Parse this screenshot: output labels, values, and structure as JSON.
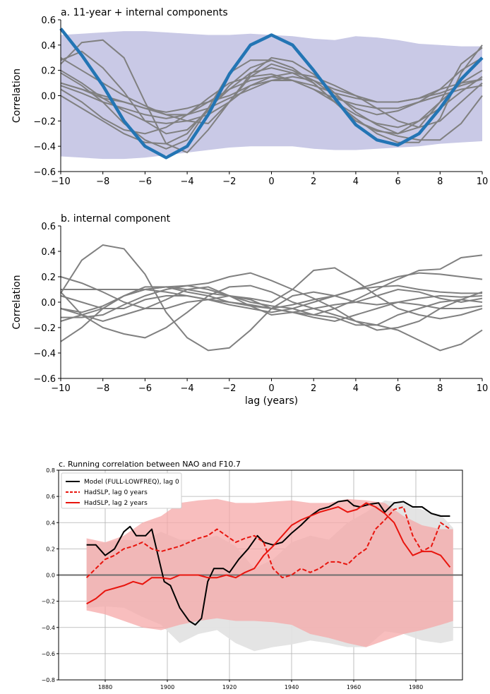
{
  "chart_data": [
    {
      "type": "line",
      "title": "a. 11-year + internal components",
      "xlabel": "",
      "ylabel": "Correlation",
      "xlim": [
        -10,
        10
      ],
      "ylim": [
        -0.6,
        0.6
      ],
      "xticks": [
        "−10",
        "−8",
        "−6",
        "−4",
        "−2",
        "0",
        "2",
        "4",
        "6",
        "8",
        "10"
      ],
      "yticks": [
        "−0.6",
        "−0.4",
        "−0.2",
        "0.0",
        "0.2",
        "0.4",
        "0.6"
      ],
      "grid": false,
      "x": [
        -10,
        -9,
        -8,
        -7,
        -6,
        -5,
        -4,
        -3,
        -2,
        -1,
        0,
        1,
        2,
        3,
        4,
        5,
        6,
        7,
        8,
        9,
        10
      ],
      "band": {
        "color": "#c9c9e6",
        "upper": [
          0.48,
          0.49,
          0.5,
          0.51,
          0.51,
          0.5,
          0.49,
          0.48,
          0.48,
          0.49,
          0.48,
          0.47,
          0.45,
          0.44,
          0.47,
          0.46,
          0.44,
          0.41,
          0.4,
          0.39,
          0.39
        ],
        "lower": [
          -0.48,
          -0.49,
          -0.5,
          -0.5,
          -0.49,
          -0.47,
          -0.45,
          -0.43,
          -0.41,
          -0.4,
          -0.4,
          -0.4,
          -0.42,
          -0.43,
          -0.43,
          -0.42,
          -0.41,
          -0.4,
          -0.38,
          -0.37,
          -0.36
        ]
      },
      "highlight": {
        "color": "#2375b4",
        "values": [
          0.53,
          0.32,
          0.08,
          -0.2,
          -0.4,
          -0.49,
          -0.4,
          -0.15,
          0.17,
          0.4,
          0.48,
          0.4,
          0.2,
          -0.02,
          -0.23,
          -0.35,
          -0.39,
          -0.3,
          -0.1,
          0.13,
          0.3
        ]
      },
      "series_color": "#808080",
      "series": [
        {
          "values": [
            0.25,
            0.42,
            0.44,
            0.3,
            -0.05,
            -0.38,
            -0.45,
            -0.27,
            -0.05,
            0.17,
            0.3,
            0.27,
            0.17,
            0.02,
            -0.13,
            -0.23,
            -0.3,
            -0.2,
            -0.05,
            0.25,
            0.38
          ]
        },
        {
          "values": [
            0.28,
            0.35,
            0.22,
            0.03,
            -0.2,
            -0.3,
            -0.27,
            -0.12,
            0.08,
            0.22,
            0.28,
            0.22,
            0.1,
            -0.05,
            -0.2,
            -0.27,
            -0.32,
            -0.35,
            -0.35,
            -0.22,
            0.0
          ]
        },
        {
          "values": [
            0.18,
            0.08,
            -0.05,
            -0.22,
            -0.35,
            -0.42,
            -0.35,
            -0.1,
            0.18,
            0.28,
            0.28,
            0.22,
            0.1,
            -0.05,
            -0.18,
            -0.3,
            -0.37,
            -0.37,
            -0.18,
            0.18,
            0.4
          ]
        },
        {
          "values": [
            0.1,
            0.05,
            -0.02,
            -0.05,
            -0.1,
            -0.13,
            -0.1,
            -0.05,
            0.0,
            0.08,
            0.12,
            0.12,
            0.08,
            0.02,
            -0.02,
            -0.05,
            -0.05,
            -0.02,
            0.05,
            0.1,
            0.13
          ]
        },
        {
          "values": [
            0.05,
            -0.05,
            -0.18,
            -0.27,
            -0.3,
            -0.25,
            -0.15,
            -0.02,
            0.1,
            0.15,
            0.17,
            0.12,
            0.05,
            -0.05,
            -0.15,
            -0.22,
            -0.25,
            -0.2,
            -0.1,
            0.03,
            0.15
          ]
        },
        {
          "values": [
            0.0,
            -0.1,
            -0.2,
            -0.3,
            -0.37,
            -0.38,
            -0.3,
            -0.1,
            0.05,
            0.18,
            0.22,
            0.18,
            0.1,
            -0.05,
            -0.2,
            -0.28,
            -0.3,
            -0.25,
            -0.05,
            0.1,
            0.2
          ]
        },
        {
          "values": [
            0.3,
            0.2,
            0.1,
            0.0,
            -0.08,
            -0.15,
            -0.2,
            -0.22,
            -0.05,
            0.15,
            0.25,
            0.2,
            0.12,
            0.0,
            -0.1,
            -0.15,
            -0.12,
            -0.05,
            0.05,
            0.2,
            0.3
          ]
        },
        {
          "values": [
            0.1,
            0.05,
            0.0,
            -0.05,
            -0.1,
            -0.15,
            -0.15,
            -0.1,
            -0.02,
            0.05,
            0.12,
            0.15,
            0.12,
            0.05,
            0.0,
            -0.05,
            -0.05,
            -0.02,
            0.02,
            0.08,
            0.13
          ]
        },
        {
          "values": [
            0.2,
            0.1,
            -0.02,
            -0.12,
            -0.2,
            -0.22,
            -0.2,
            -0.15,
            -0.05,
            0.08,
            0.15,
            0.18,
            0.15,
            0.08,
            0.0,
            -0.1,
            -0.2,
            -0.25,
            -0.2,
            -0.05,
            0.1
          ]
        },
        {
          "values": [
            0.08,
            0.02,
            -0.05,
            -0.1,
            -0.15,
            -0.18,
            -0.15,
            -0.05,
            0.05,
            0.12,
            0.15,
            0.12,
            0.05,
            -0.02,
            -0.07,
            -0.1,
            -0.1,
            -0.05,
            0.0,
            0.05,
            0.08
          ]
        }
      ]
    },
    {
      "type": "line",
      "title": "b. internal component",
      "xlabel": "lag (years)",
      "ylabel": "Correlation",
      "xlim": [
        -10,
        10
      ],
      "ylim": [
        -0.6,
        0.6
      ],
      "xticks": [
        "−10",
        "−8",
        "−6",
        "−4",
        "−2",
        "0",
        "2",
        "4",
        "6",
        "8",
        "10"
      ],
      "yticks": [
        "−0.6",
        "−0.4",
        "−0.2",
        "0.0",
        "0.2",
        "0.4",
        "0.6"
      ],
      "grid": false,
      "x": [
        -10,
        -9,
        -8,
        -7,
        -6,
        -5,
        -4,
        -3,
        -2,
        -1,
        0,
        1,
        2,
        3,
        4,
        5,
        6,
        7,
        8,
        9,
        10
      ],
      "series_color": "#808080",
      "series": [
        {
          "values": [
            0.07,
            0.33,
            0.45,
            0.42,
            0.22,
            -0.08,
            -0.28,
            -0.38,
            -0.36,
            -0.22,
            -0.05,
            0.05,
            0.08,
            0.05,
            0.0,
            -0.02,
            0.0,
            0.03,
            0.05,
            0.04,
            0.05
          ]
        },
        {
          "values": [
            0.08,
            -0.1,
            -0.2,
            -0.25,
            -0.28,
            -0.2,
            -0.08,
            0.05,
            0.12,
            0.13,
            0.08,
            0.0,
            -0.05,
            -0.1,
            -0.15,
            -0.18,
            -0.22,
            -0.3,
            -0.38,
            -0.33,
            -0.22
          ]
        },
        {
          "values": [
            -0.31,
            -0.2,
            -0.05,
            0.05,
            0.1,
            0.12,
            0.1,
            0.07,
            0.05,
            0.02,
            -0.05,
            -0.08,
            -0.1,
            -0.05,
            0.02,
            0.1,
            0.18,
            0.25,
            0.26,
            0.35,
            0.37
          ]
        },
        {
          "values": [
            0.2,
            0.15,
            0.08,
            0.0,
            -0.05,
            -0.05,
            0.0,
            0.02,
            0.05,
            0.03,
            0.0,
            0.1,
            0.25,
            0.27,
            0.17,
            0.05,
            -0.05,
            -0.1,
            -0.13,
            -0.1,
            -0.05
          ]
        },
        {
          "values": [
            -0.05,
            -0.08,
            -0.03,
            0.05,
            0.1,
            0.12,
            0.13,
            0.15,
            0.2,
            0.23,
            0.17,
            0.1,
            0.03,
            -0.05,
            -0.15,
            -0.22,
            -0.2,
            -0.15,
            -0.05,
            0.02,
            0.08
          ]
        },
        {
          "values": [
            -0.15,
            -0.1,
            -0.05,
            0.05,
            0.12,
            0.12,
            0.08,
            0.05,
            0.0,
            -0.02,
            -0.05,
            -0.02,
            0.02,
            0.05,
            0.1,
            0.15,
            0.2,
            0.23,
            0.22,
            0.2,
            0.18
          ]
        },
        {
          "values": [
            0.1,
            0.1,
            0.1,
            0.1,
            0.1,
            0.08,
            0.05,
            0.02,
            -0.02,
            -0.05,
            -0.08,
            -0.05,
            0.0,
            0.05,
            0.1,
            0.12,
            0.13,
            0.1,
            0.08,
            0.07,
            0.07
          ]
        },
        {
          "values": [
            -0.05,
            -0.1,
            -0.15,
            -0.1,
            -0.05,
            0.02,
            0.1,
            0.12,
            0.05,
            -0.03,
            -0.1,
            -0.08,
            -0.05,
            -0.02,
            0.0,
            0.05,
            0.1,
            0.08,
            0.03,
            0.0,
            0.03
          ]
        },
        {
          "values": [
            0.05,
            0.0,
            -0.05,
            -0.05,
            0.02,
            0.05,
            0.05,
            0.02,
            0.0,
            -0.03,
            -0.05,
            -0.08,
            -0.12,
            -0.15,
            -0.1,
            -0.05,
            0.0,
            -0.02,
            -0.05,
            -0.05,
            -0.03
          ]
        },
        {
          "values": [
            -0.12,
            -0.12,
            -0.1,
            -0.02,
            0.05,
            0.1,
            0.13,
            0.1,
            0.05,
            0.0,
            -0.03,
            -0.05,
            -0.1,
            -0.12,
            -0.18,
            -0.18,
            -0.1,
            -0.05,
            0.0,
            0.02,
            0.0
          ]
        }
      ]
    },
    {
      "type": "line",
      "title": "c. Running correlation between NAO and F10.7",
      "xlabel": "",
      "ylabel": "",
      "xlim": [
        1865,
        1995
      ],
      "ylim": [
        -0.8,
        0.8
      ],
      "xticks": [
        "1880",
        "1900",
        "1920",
        "1940",
        "1960",
        "1980"
      ],
      "yticks": [
        "−0.8",
        "−0.6",
        "−0.4",
        "−0.2",
        "0.0",
        "0.2",
        "0.4",
        "0.6",
        "0.8"
      ],
      "grid": true,
      "legend": "top-left",
      "zero_line": true,
      "grey_band": {
        "color": "#e3e3e3",
        "x": [
          1874,
          1880,
          1886,
          1892,
          1898,
          1904,
          1910,
          1916,
          1922,
          1928,
          1934,
          1940,
          1946,
          1952,
          1958,
          1964,
          1970,
          1976,
          1982,
          1988,
          1992
        ],
        "upper": [
          0.22,
          0.25,
          0.27,
          0.26,
          0.33,
          0.27,
          0.27,
          0.3,
          0.22,
          0.05,
          0.12,
          0.25,
          0.3,
          0.27,
          0.4,
          0.48,
          0.57,
          0.55,
          0.5,
          0.46,
          0.36
        ],
        "lower": [
          -0.25,
          -0.24,
          -0.25,
          -0.32,
          -0.38,
          -0.52,
          -0.45,
          -0.42,
          -0.52,
          -0.58,
          -0.55,
          -0.53,
          -0.5,
          -0.52,
          -0.55,
          -0.55,
          -0.43,
          -0.45,
          -0.5,
          -0.52,
          -0.5
        ]
      },
      "red_band": {
        "color": "#f5a8a8",
        "x": [
          1874,
          1880,
          1886,
          1892,
          1898,
          1904,
          1910,
          1916,
          1922,
          1928,
          1934,
          1940,
          1946,
          1952,
          1958,
          1964,
          1970,
          1976,
          1982,
          1988,
          1992
        ],
        "upper": [
          0.28,
          0.25,
          0.3,
          0.4,
          0.45,
          0.55,
          0.57,
          0.58,
          0.55,
          0.55,
          0.56,
          0.57,
          0.55,
          0.55,
          0.58,
          0.57,
          0.55,
          0.45,
          0.38,
          0.35,
          0.35
        ],
        "lower": [
          -0.27,
          -0.3,
          -0.35,
          -0.4,
          -0.42,
          -0.38,
          -0.35,
          -0.33,
          -0.35,
          -0.35,
          -0.36,
          -0.38,
          -0.45,
          -0.48,
          -0.52,
          -0.55,
          -0.5,
          -0.45,
          -0.42,
          -0.38,
          -0.35
        ]
      },
      "series": [
        {
          "name": "Model (FULL-LOWFREQ), lag 0",
          "color": "#000000",
          "dash": "",
          "x": [
            1874,
            1877,
            1880,
            1883,
            1886,
            1888,
            1890,
            1893,
            1895,
            1897,
            1899,
            1901,
            1904,
            1907,
            1909,
            1911,
            1913,
            1915,
            1918,
            1920,
            1923,
            1926,
            1929,
            1931,
            1934,
            1937,
            1940,
            1943,
            1946,
            1949,
            1952,
            1955,
            1958,
            1960,
            1962,
            1965,
            1968,
            1970,
            1973,
            1976,
            1979,
            1982,
            1985,
            1988,
            1991
          ],
          "y": [
            0.23,
            0.23,
            0.15,
            0.2,
            0.33,
            0.37,
            0.3,
            0.3,
            0.35,
            0.15,
            -0.05,
            -0.08,
            -0.25,
            -0.35,
            -0.38,
            -0.33,
            -0.05,
            0.05,
            0.05,
            0.02,
            0.12,
            0.2,
            0.3,
            0.25,
            0.23,
            0.25,
            0.32,
            0.38,
            0.45,
            0.5,
            0.52,
            0.56,
            0.57,
            0.53,
            0.52,
            0.54,
            0.55,
            0.48,
            0.55,
            0.56,
            0.52,
            0.52,
            0.47,
            0.45,
            0.45
          ]
        },
        {
          "name": "HadSLP, lag 0 years",
          "color": "#e8150e",
          "dash": "6,3",
          "x": [
            1874,
            1877,
            1880,
            1883,
            1886,
            1889,
            1892,
            1895,
            1898,
            1901,
            1904,
            1907,
            1910,
            1913,
            1916,
            1919,
            1922,
            1925,
            1928,
            1931,
            1934,
            1937,
            1940,
            1943,
            1946,
            1949,
            1952,
            1955,
            1958,
            1961,
            1964,
            1967,
            1970,
            1973,
            1976,
            1979,
            1982,
            1985,
            1988,
            1991
          ],
          "y": [
            -0.02,
            0.05,
            0.12,
            0.15,
            0.2,
            0.22,
            0.25,
            0.2,
            0.18,
            0.2,
            0.22,
            0.25,
            0.28,
            0.3,
            0.35,
            0.3,
            0.25,
            0.28,
            0.3,
            0.25,
            0.05,
            -0.02,
            0.0,
            0.05,
            0.02,
            0.05,
            0.1,
            0.1,
            0.08,
            0.15,
            0.2,
            0.35,
            0.42,
            0.5,
            0.52,
            0.3,
            0.18,
            0.22,
            0.4,
            0.35
          ]
        },
        {
          "name": "HadSLP, lag 2 years",
          "color": "#e8150e",
          "dash": "",
          "x": [
            1874,
            1877,
            1880,
            1883,
            1886,
            1889,
            1892,
            1895,
            1898,
            1901,
            1904,
            1907,
            1910,
            1913,
            1916,
            1919,
            1922,
            1925,
            1928,
            1931,
            1934,
            1937,
            1940,
            1943,
            1946,
            1949,
            1952,
            1955,
            1958,
            1961,
            1964,
            1967,
            1970,
            1973,
            1976,
            1979,
            1982,
            1985,
            1988,
            1991
          ],
          "y": [
            -0.22,
            -0.18,
            -0.12,
            -0.1,
            -0.08,
            -0.05,
            -0.07,
            -0.02,
            -0.02,
            -0.03,
            0.0,
            0.0,
            0.0,
            -0.02,
            -0.02,
            0.0,
            -0.02,
            0.02,
            0.05,
            0.15,
            0.22,
            0.3,
            0.38,
            0.42,
            0.45,
            0.48,
            0.5,
            0.52,
            0.48,
            0.5,
            0.55,
            0.52,
            0.47,
            0.4,
            0.25,
            0.15,
            0.18,
            0.18,
            0.15,
            0.06
          ]
        }
      ]
    }
  ]
}
